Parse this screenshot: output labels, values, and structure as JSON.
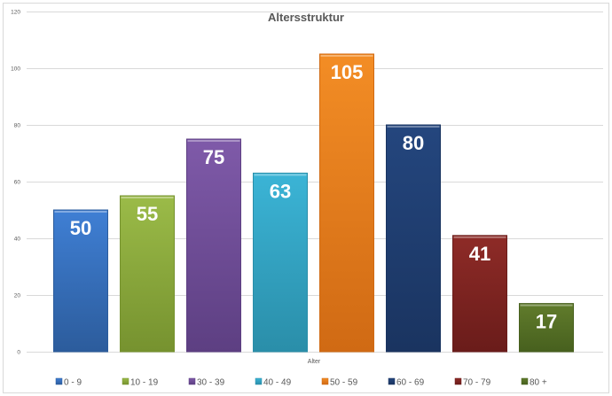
{
  "chart_data": {
    "type": "bar",
    "title": "Altersstruktur",
    "xlabel": "Alter",
    "ylabel": "",
    "ylim": [
      0,
      120
    ],
    "yticks": [
      0,
      20,
      40,
      60,
      80,
      100,
      120
    ],
    "grid": true,
    "legend_position": "bottom",
    "categories": [
      "0 - 9",
      "10 - 19",
      "30 - 39",
      "40 - 49",
      "50 - 59",
      "60 - 69",
      "70 - 79",
      "80 +"
    ],
    "values": [
      50,
      55,
      75,
      63,
      105,
      80,
      41,
      17
    ],
    "colors": [
      "#3f7fd4",
      "#9bbb48",
      "#7f5aa9",
      "#3bb4d6",
      "#f38d25",
      "#24467e",
      "#8e2b27",
      "#617c2c"
    ],
    "dark_colors": [
      "#2c5c9c",
      "#76922f",
      "#5d3f82",
      "#2a8ea9",
      "#d06a14",
      "#1a3460",
      "#6a1c1a",
      "#47601e"
    ]
  }
}
